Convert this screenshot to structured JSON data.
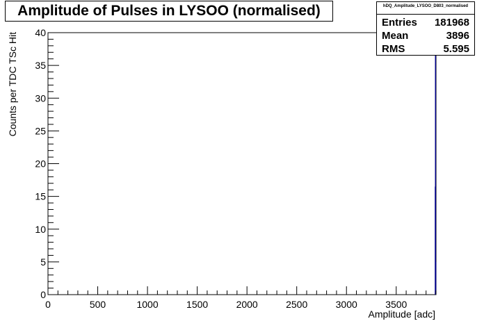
{
  "chart_data": {
    "type": "bar",
    "title": "Amplitude of Pulses in LYSOO (normalised)",
    "xlabel": "Amplitude [adc]",
    "ylabel": "Counts per TDC TSc Hit",
    "xlim": [
      0,
      3900
    ],
    "ylim": [
      0,
      40
    ],
    "xticks": [
      0,
      500,
      1000,
      1500,
      2000,
      2500,
      3000,
      3500
    ],
    "yticks": [
      0,
      5,
      10,
      15,
      20,
      25,
      30,
      35,
      40
    ],
    "series": [
      {
        "values": [
          {
            "x": 3893,
            "y": 16.5
          },
          {
            "x": 3895,
            "y": 40
          },
          {
            "x": 3897,
            "y": 5
          }
        ]
      }
    ],
    "grid": false,
    "stats": {
      "name": "hDQ_Amplitude_LYSOO_D803_normalised",
      "entries_label": "Entries",
      "entries": "181968",
      "mean_label": "Mean",
      "mean": "3896",
      "rms_label": "RMS",
      "rms": "5.595"
    },
    "colors": {
      "histogram": "#00008b",
      "axis": "#000000"
    }
  }
}
